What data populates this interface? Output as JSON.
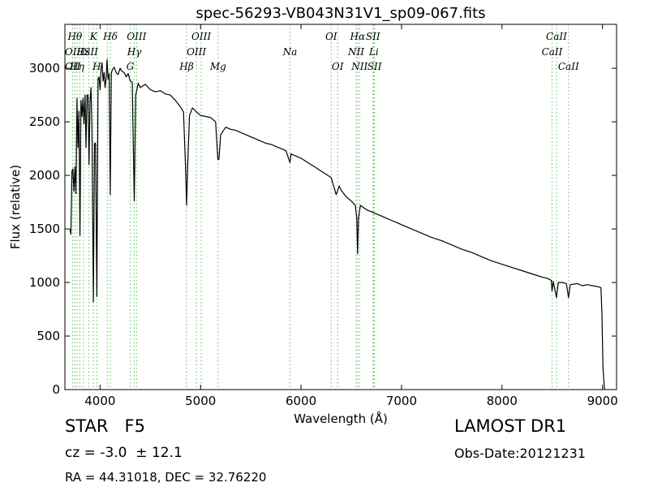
{
  "chart_data": {
    "type": "line",
    "title": "spec-56293-VB043N31V1_sp09-067.fits",
    "xlabel": "Wavelength (Å)",
    "ylabel": "Flux (relative)",
    "xlim": [
      3650,
      9140
    ],
    "ylim": [
      0,
      3410
    ],
    "xticks": [
      4000,
      5000,
      6000,
      7000,
      8000,
      9000
    ],
    "yticks": [
      0,
      500,
      1000,
      1500,
      2000,
      2500,
      3000
    ],
    "grid": false,
    "line_color": "#000000",
    "marker_line_color": "#5cbf5c",
    "series": [
      {
        "values": [
          [
            3700,
            1500
          ],
          [
            3710,
            1450
          ],
          [
            3720,
            2040
          ],
          [
            3730,
            2060
          ],
          [
            3740,
            1850
          ],
          [
            3750,
            2080
          ],
          [
            3760,
            1830
          ],
          [
            3770,
            2720
          ],
          [
            3780,
            2260
          ],
          [
            3790,
            2600
          ],
          [
            3800,
            1440
          ],
          [
            3810,
            2700
          ],
          [
            3820,
            2550
          ],
          [
            3830,
            2720
          ],
          [
            3840,
            2480
          ],
          [
            3850,
            2750
          ],
          [
            3860,
            2260
          ],
          [
            3870,
            2750
          ],
          [
            3880,
            2750
          ],
          [
            3890,
            2100
          ],
          [
            3900,
            2700
          ],
          [
            3910,
            2820
          ],
          [
            3920,
            2400
          ],
          [
            3933,
            820
          ],
          [
            3945,
            2300
          ],
          [
            3955,
            2300
          ],
          [
            3968,
            870
          ],
          [
            3980,
            2900
          ],
          [
            3990,
            2920
          ],
          [
            4000,
            2800
          ],
          [
            4010,
            3000
          ],
          [
            4020,
            3050
          ],
          [
            4030,
            2880
          ],
          [
            4040,
            2960
          ],
          [
            4050,
            2820
          ],
          [
            4060,
            2900
          ],
          [
            4070,
            3080
          ],
          [
            4080,
            2900
          ],
          [
            4090,
            2950
          ],
          [
            4101,
            1820
          ],
          [
            4112,
            2950
          ],
          [
            4120,
            2980
          ],
          [
            4140,
            3010
          ],
          [
            4160,
            2960
          ],
          [
            4180,
            2940
          ],
          [
            4200,
            3000
          ],
          [
            4220,
            2970
          ],
          [
            4240,
            2960
          ],
          [
            4260,
            2920
          ],
          [
            4280,
            2950
          ],
          [
            4300,
            2880
          ],
          [
            4320,
            2870
          ],
          [
            4340,
            1760
          ],
          [
            4355,
            2750
          ],
          [
            4380,
            2860
          ],
          [
            4400,
            2820
          ],
          [
            4450,
            2850
          ],
          [
            4500,
            2800
          ],
          [
            4550,
            2780
          ],
          [
            4600,
            2790
          ],
          [
            4650,
            2760
          ],
          [
            4700,
            2750
          ],
          [
            4750,
            2700
          ],
          [
            4800,
            2640
          ],
          [
            4830,
            2590
          ],
          [
            4850,
            2100
          ],
          [
            4861,
            1720
          ],
          [
            4872,
            2100
          ],
          [
            4890,
            2560
          ],
          [
            4920,
            2630
          ],
          [
            4950,
            2600
          ],
          [
            5000,
            2560
          ],
          [
            5050,
            2550
          ],
          [
            5100,
            2540
          ],
          [
            5150,
            2500
          ],
          [
            5172,
            2150
          ],
          [
            5183,
            2150
          ],
          [
            5200,
            2380
          ],
          [
            5250,
            2450
          ],
          [
            5300,
            2430
          ],
          [
            5350,
            2420
          ],
          [
            5400,
            2400
          ],
          [
            5450,
            2380
          ],
          [
            5500,
            2360
          ],
          [
            5550,
            2340
          ],
          [
            5600,
            2320
          ],
          [
            5650,
            2300
          ],
          [
            5700,
            2290
          ],
          [
            5750,
            2270
          ],
          [
            5800,
            2250
          ],
          [
            5850,
            2230
          ],
          [
            5890,
            2120
          ],
          [
            5900,
            2200
          ],
          [
            5950,
            2180
          ],
          [
            6000,
            2160
          ],
          [
            6050,
            2130
          ],
          [
            6100,
            2100
          ],
          [
            6150,
            2070
          ],
          [
            6200,
            2040
          ],
          [
            6250,
            2010
          ],
          [
            6300,
            1980
          ],
          [
            6350,
            1820
          ],
          [
            6380,
            1900
          ],
          [
            6400,
            1860
          ],
          [
            6450,
            1800
          ],
          [
            6500,
            1760
          ],
          [
            6540,
            1720
          ],
          [
            6555,
            1600
          ],
          [
            6563,
            1270
          ],
          [
            6572,
            1600
          ],
          [
            6590,
            1720
          ],
          [
            6650,
            1680
          ],
          [
            6700,
            1660
          ],
          [
            6750,
            1640
          ],
          [
            6800,
            1620
          ],
          [
            6850,
            1600
          ],
          [
            6900,
            1580
          ],
          [
            6950,
            1560
          ],
          [
            7000,
            1540
          ],
          [
            7100,
            1500
          ],
          [
            7200,
            1460
          ],
          [
            7300,
            1420
          ],
          [
            7400,
            1390
          ],
          [
            7500,
            1350
          ],
          [
            7600,
            1310
          ],
          [
            7700,
            1280
          ],
          [
            7800,
            1240
          ],
          [
            7900,
            1200
          ],
          [
            8000,
            1170
          ],
          [
            8100,
            1140
          ],
          [
            8200,
            1110
          ],
          [
            8300,
            1080
          ],
          [
            8400,
            1050
          ],
          [
            8450,
            1040
          ],
          [
            8490,
            1020
          ],
          [
            8498,
            920
          ],
          [
            8510,
            1010
          ],
          [
            8542,
            860
          ],
          [
            8560,
            1000
          ],
          [
            8600,
            1000
          ],
          [
            8640,
            990
          ],
          [
            8662,
            860
          ],
          [
            8680,
            980
          ],
          [
            8750,
            990
          ],
          [
            8800,
            970
          ],
          [
            8850,
            980
          ],
          [
            8900,
            970
          ],
          [
            8960,
            960
          ],
          [
            8985,
            950
          ],
          [
            8995,
            700
          ],
          [
            9005,
            200
          ],
          [
            9020,
            0
          ]
        ]
      }
    ],
    "line_markers": [
      {
        "x": 3727,
        "labels": [
          "OII"
        ],
        "row": 1
      },
      {
        "x": 3727,
        "labels": [
          "OII"
        ],
        "row": 2
      },
      {
        "x": 3750,
        "labels": [
          "Hθ"
        ],
        "row": 0
      },
      {
        "x": 3771,
        "labels": [
          "Hη"
        ],
        "row": 2
      },
      {
        "x": 3798,
        "labels": [],
        "row": 0
      },
      {
        "x": 3835,
        "labels": [
          "Hε"
        ],
        "row": 1
      },
      {
        "x": 3889,
        "labels": [
          "ISII"
        ],
        "row": 1
      },
      {
        "x": 3934,
        "labels": [
          "K"
        ],
        "row": 0
      },
      {
        "x": 3968,
        "labels": [
          "H"
        ],
        "row": 2
      },
      {
        "x": 4072,
        "labels": [],
        "row": 0
      },
      {
        "x": 4102,
        "labels": [
          "Hδ"
        ],
        "row": 0
      },
      {
        "x": 4300,
        "labels": [
          "G"
        ],
        "row": 2
      },
      {
        "x": 4341,
        "labels": [
          "Hγ"
        ],
        "row": 1
      },
      {
        "x": 4363,
        "labels": [
          "OIII"
        ],
        "row": 0
      },
      {
        "x": 4861,
        "labels": [
          "Hβ"
        ],
        "row": 2
      },
      {
        "x": 4959,
        "labels": [
          "OIII"
        ],
        "row": 1
      },
      {
        "x": 5007,
        "labels": [
          "OIII"
        ],
        "row": 0
      },
      {
        "x": 5175,
        "labels": [
          "Mg"
        ],
        "row": 2
      },
      {
        "x": 5890,
        "labels": [
          "Na"
        ],
        "row": 1
      },
      {
        "x": 6300,
        "labels": [
          "OI"
        ],
        "row": 0
      },
      {
        "x": 6364,
        "labels": [
          "OI"
        ],
        "row": 2
      },
      {
        "x": 6548,
        "labels": [
          "NII"
        ],
        "row": 1
      },
      {
        "x": 6563,
        "labels": [
          "Hα"
        ],
        "row": 0
      },
      {
        "x": 6583,
        "labels": [
          "NII"
        ],
        "row": 2
      },
      {
        "x": 6716,
        "labels": [
          "SII"
        ],
        "row": 0
      },
      {
        "x": 6725,
        "labels": [
          "Li"
        ],
        "row": 1
      },
      {
        "x": 6731,
        "labels": [
          "SII"
        ],
        "row": 2
      },
      {
        "x": 8498,
        "labels": [
          "CaII"
        ],
        "row": 1
      },
      {
        "x": 8542,
        "labels": [
          "CaII"
        ],
        "row": 0
      },
      {
        "x": 8662,
        "labels": [
          "CaII"
        ],
        "row": 2
      }
    ]
  },
  "footer": {
    "object_class": "STAR   F5",
    "survey": "LAMOST DR1",
    "redshift": "cz = -3.0  ± 12.1",
    "obs_date": "Obs-Date:20121231",
    "coords": "RA = 44.31018, DEC = 32.76220"
  }
}
